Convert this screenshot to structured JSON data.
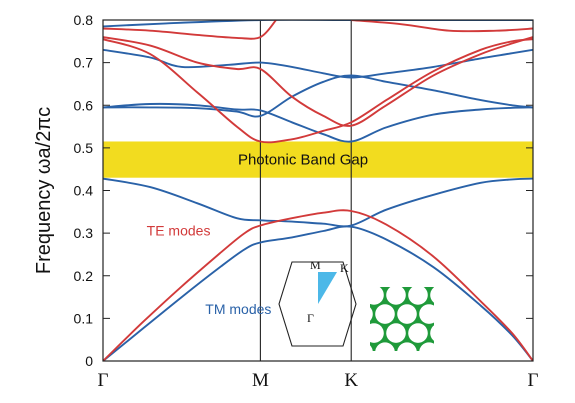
{
  "chart_data": {
    "type": "line",
    "ylabel": "Frequency ωa/2πc",
    "ylim": [
      0,
      0.8
    ],
    "y_ticks": [
      0,
      0.1,
      0.2,
      0.3,
      0.4,
      0.5,
      0.6,
      0.7,
      0.8
    ],
    "y_tick_labels": [
      "0",
      "0.1",
      "0.2",
      "0.3",
      "0.4",
      "0.5",
      "0.6",
      "0.7",
      "0.8"
    ],
    "x_points": [
      {
        "label": "Γ",
        "k": 0
      },
      {
        "label": "M",
        "k": 1
      },
      {
        "label": "K",
        "k": 1.577
      },
      {
        "label": "Γ",
        "k": 2.732
      }
    ],
    "xlim": [
      0,
      2.732
    ],
    "band_gap": {
      "ymin": 0.43,
      "ymax": 0.515,
      "label": "Photonic Band Gap",
      "color": "#f2dc1f"
    },
    "annotations": [
      {
        "text": "TE modes",
        "color": "#d23a3a",
        "k": 0.48,
        "y": 0.295
      },
      {
        "text": "TM modes",
        "color": "#2a62a8",
        "k": 0.86,
        "y": 0.11
      }
    ],
    "inset_labels": {
      "gamma": "Γ",
      "m": "M",
      "k": "K"
    },
    "colors": {
      "te": "#d23a3a",
      "tm": "#2a62a8",
      "lattice": "#1f9a3a",
      "wedge": "#4cb8e8"
    },
    "series": [
      {
        "name": "TM modes",
        "group": "tm",
        "points": [
          [
            0,
            0
          ],
          [
            0.25,
            0.075
          ],
          [
            0.5,
            0.15
          ],
          [
            0.75,
            0.222
          ],
          [
            0.9,
            0.262
          ],
          [
            1,
            0.278
          ],
          [
            1.2,
            0.29
          ],
          [
            1.4,
            0.305
          ],
          [
            1.577,
            0.315
          ],
          [
            1.8,
            0.285
          ],
          [
            2.1,
            0.22
          ],
          [
            2.4,
            0.13
          ],
          [
            2.6,
            0.06
          ],
          [
            2.732,
            0
          ]
        ]
      },
      {
        "name": "TM modes",
        "group": "tm",
        "points": [
          [
            0,
            0.428
          ],
          [
            0.3,
            0.408
          ],
          [
            0.6,
            0.37
          ],
          [
            0.85,
            0.335
          ],
          [
            1,
            0.33
          ],
          [
            1.2,
            0.327
          ],
          [
            1.4,
            0.322
          ],
          [
            1.577,
            0.318
          ],
          [
            1.8,
            0.355
          ],
          [
            2.1,
            0.39
          ],
          [
            2.4,
            0.418
          ],
          [
            2.6,
            0.426
          ],
          [
            2.732,
            0.428
          ]
        ]
      },
      {
        "name": "TM modes",
        "group": "tm",
        "points": [
          [
            0,
            0.595
          ],
          [
            0.3,
            0.603
          ],
          [
            0.6,
            0.6
          ],
          [
            0.85,
            0.59
          ],
          [
            1,
            0.588
          ],
          [
            1.2,
            0.56
          ],
          [
            1.4,
            0.532
          ],
          [
            1.577,
            0.515
          ],
          [
            1.8,
            0.548
          ],
          [
            2.1,
            0.578
          ],
          [
            2.4,
            0.59
          ],
          [
            2.6,
            0.594
          ],
          [
            2.732,
            0.595
          ]
        ]
      },
      {
        "name": "TM modes",
        "group": "tm",
        "points": [
          [
            0,
            0.595
          ],
          [
            0.3,
            0.595
          ],
          [
            0.6,
            0.593
          ],
          [
            0.85,
            0.585
          ],
          [
            1,
            0.575
          ],
          [
            1.2,
            0.62
          ],
          [
            1.4,
            0.655
          ],
          [
            1.577,
            0.67
          ],
          [
            1.8,
            0.655
          ],
          [
            2.1,
            0.635
          ],
          [
            2.4,
            0.612
          ],
          [
            2.6,
            0.6
          ],
          [
            2.732,
            0.595
          ]
        ]
      },
      {
        "name": "TM modes",
        "group": "tm",
        "points": [
          [
            0,
            0.73
          ],
          [
            0.3,
            0.712
          ],
          [
            0.5,
            0.69
          ],
          [
            0.8,
            0.695
          ],
          [
            1,
            0.7
          ],
          [
            1.2,
            0.69
          ],
          [
            1.4,
            0.675
          ],
          [
            1.577,
            0.665
          ],
          [
            1.8,
            0.675
          ],
          [
            2.1,
            0.69
          ],
          [
            2.4,
            0.71
          ],
          [
            2.6,
            0.722
          ],
          [
            2.732,
            0.73
          ]
        ]
      },
      {
        "name": "TM modes",
        "group": "tm",
        "points": [
          [
            0,
            0.785
          ],
          [
            0.4,
            0.792
          ],
          [
            1,
            0.8
          ],
          [
            1.577,
            0.8
          ],
          [
            2.2,
            0.8
          ],
          [
            2.732,
            0.8
          ]
        ]
      },
      {
        "name": "TE modes",
        "group": "te",
        "points": [
          [
            0,
            0
          ],
          [
            0.25,
            0.09
          ],
          [
            0.5,
            0.175
          ],
          [
            0.75,
            0.255
          ],
          [
            0.9,
            0.3
          ],
          [
            1,
            0.318
          ],
          [
            1.2,
            0.335
          ],
          [
            1.4,
            0.348
          ],
          [
            1.577,
            0.352
          ],
          [
            1.8,
            0.32
          ],
          [
            2.1,
            0.245
          ],
          [
            2.4,
            0.14
          ],
          [
            2.6,
            0.065
          ],
          [
            2.732,
            0
          ]
        ]
      },
      {
        "name": "TE modes",
        "group": "te",
        "points": [
          [
            0,
            0.755
          ],
          [
            0.3,
            0.72
          ],
          [
            0.6,
            0.63
          ],
          [
            0.85,
            0.55
          ],
          [
            1,
            0.515
          ],
          [
            1.2,
            0.52
          ],
          [
            1.4,
            0.54
          ],
          [
            1.577,
            0.56
          ],
          [
            1.8,
            0.612
          ],
          [
            2.1,
            0.68
          ],
          [
            2.4,
            0.73
          ],
          [
            2.6,
            0.75
          ],
          [
            2.732,
            0.755
          ]
        ]
      },
      {
        "name": "TE modes",
        "group": "te",
        "points": [
          [
            0,
            0.76
          ],
          [
            0.3,
            0.74
          ],
          [
            0.6,
            0.7
          ],
          [
            0.85,
            0.685
          ],
          [
            1,
            0.685
          ],
          [
            1.2,
            0.62
          ],
          [
            1.4,
            0.575
          ],
          [
            1.577,
            0.552
          ],
          [
            1.8,
            0.6
          ],
          [
            2.1,
            0.67
          ],
          [
            2.4,
            0.72
          ],
          [
            2.6,
            0.745
          ],
          [
            2.732,
            0.76
          ]
        ]
      },
      {
        "name": "TE modes",
        "group": "te",
        "points": [
          [
            0,
            0.78
          ],
          [
            0.3,
            0.775
          ],
          [
            0.6,
            0.765
          ],
          [
            0.85,
            0.758
          ],
          [
            1,
            0.76
          ],
          [
            1.1,
            0.8
          ]
        ]
      },
      {
        "name": "TE modes",
        "group": "te",
        "points": [
          [
            1.577,
            0.8
          ],
          [
            1.9,
            0.79
          ],
          [
            2.2,
            0.775
          ],
          [
            2.5,
            0.775
          ],
          [
            2.732,
            0.78
          ]
        ]
      }
    ]
  }
}
